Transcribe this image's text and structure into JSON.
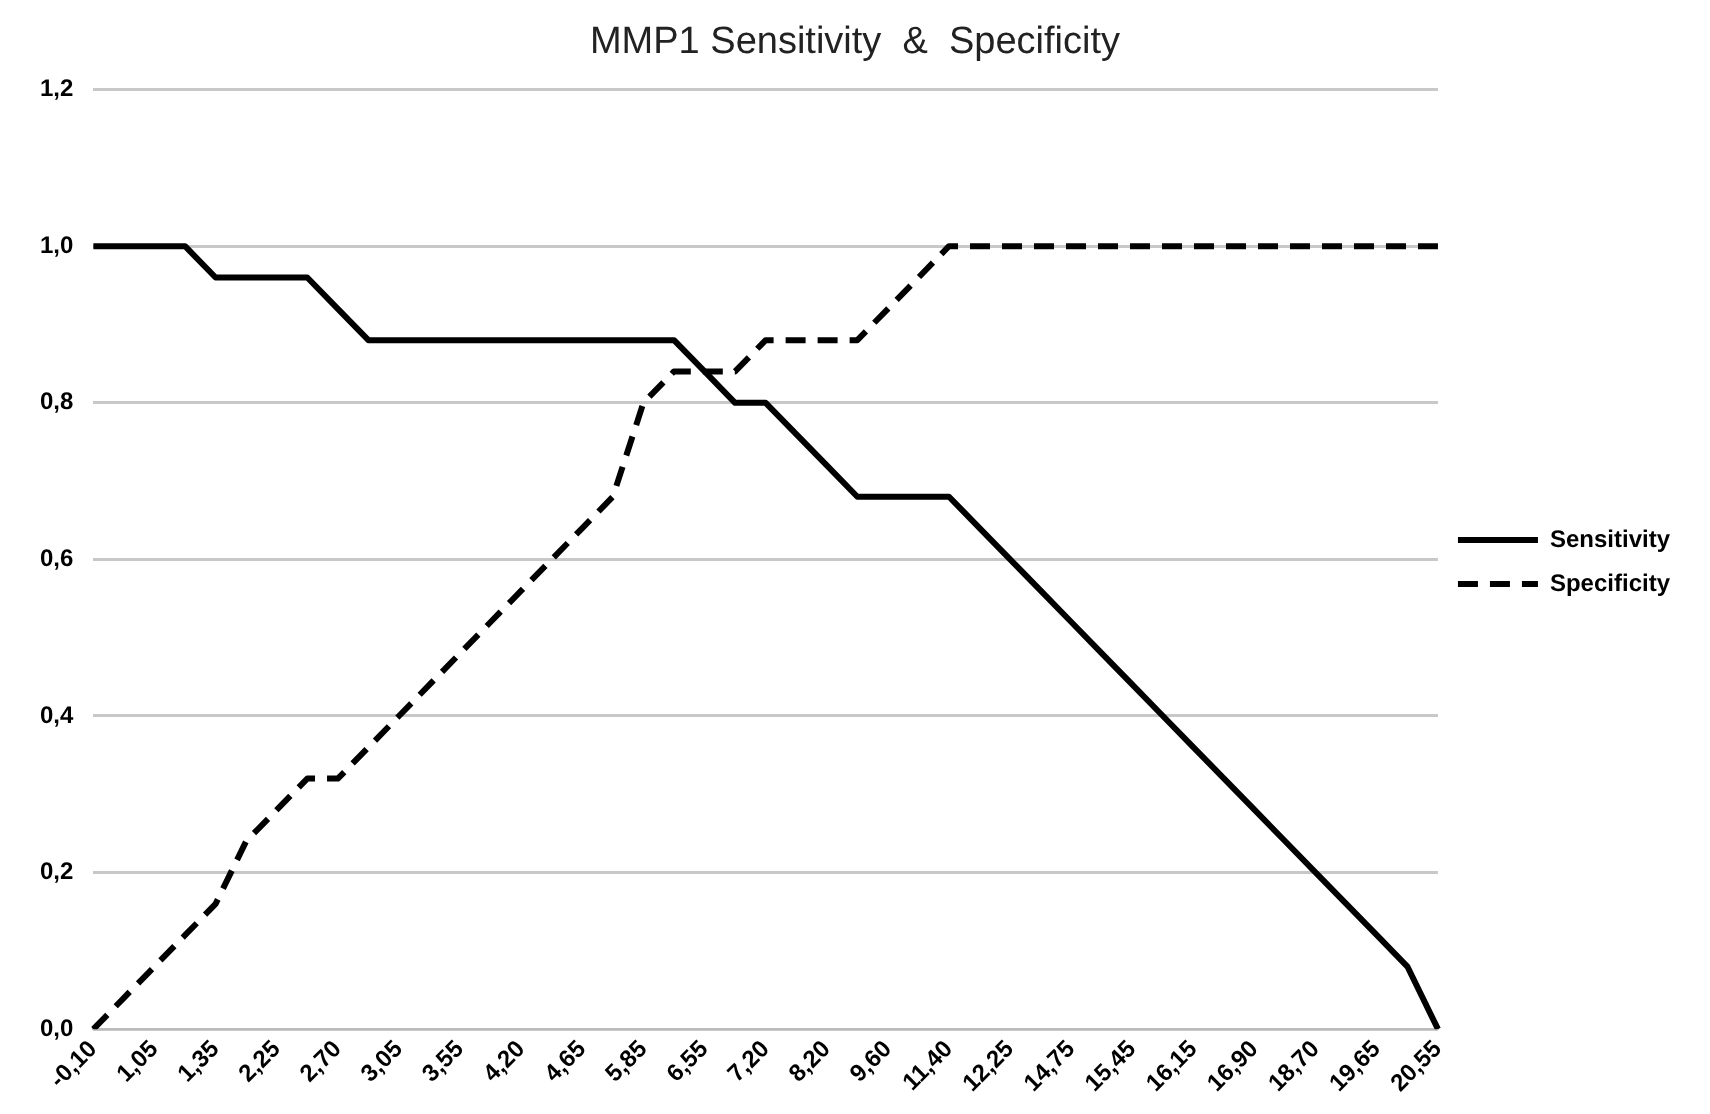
{
  "chart_data": {
    "type": "line",
    "title": "MMP1 Sensitivity  &  Specificity",
    "categories": [
      "-0,10",
      null,
      "1,05",
      null,
      "1,35",
      null,
      "2,25",
      null,
      "2,70",
      null,
      "3,05",
      null,
      "3,55",
      null,
      "4,20",
      null,
      "4,65",
      null,
      "5,85",
      null,
      "6,55",
      null,
      "7,20",
      null,
      "8,20",
      null,
      "9,60",
      null,
      "11,40",
      null,
      "12,25",
      null,
      "14,75",
      null,
      "15,45",
      null,
      "16,15",
      null,
      "16,90",
      null,
      "18,70",
      null,
      "19,65",
      null,
      "20,55"
    ],
    "series": [
      {
        "name": "Sensitivity",
        "color": "#000000",
        "line_style": "solid",
        "values": [
          1.0,
          1.0,
          1.0,
          1.0,
          0.96,
          0.96,
          0.96,
          0.96,
          0.92,
          0.88,
          0.88,
          0.88,
          0.88,
          0.88,
          0.88,
          0.88,
          0.88,
          0.88,
          0.88,
          0.88,
          0.84,
          0.8,
          0.8,
          0.76,
          0.72,
          0.68,
          0.68,
          0.68,
          0.68,
          0.64,
          0.6,
          0.56,
          0.52,
          0.48,
          0.44,
          0.4,
          0.36,
          0.32,
          0.28,
          0.24,
          0.2,
          0.16,
          0.12,
          0.08,
          0.0
        ]
      },
      {
        "name": "Specificity",
        "color": "#000000",
        "line_style": "dashed",
        "values": [
          0.0,
          0.04,
          0.08,
          0.12,
          0.16,
          0.24,
          0.28,
          0.32,
          0.32,
          0.36,
          0.4,
          0.44,
          0.48,
          0.52,
          0.56,
          0.6,
          0.64,
          0.68,
          0.8,
          0.84,
          0.84,
          0.84,
          0.88,
          0.88,
          0.88,
          0.88,
          0.92,
          0.96,
          1.0,
          1.0,
          1.0,
          1.0,
          1.0,
          1.0,
          1.0,
          1.0,
          1.0,
          1.0,
          1.0,
          1.0,
          1.0,
          1.0,
          1.0,
          1.0,
          1.0
        ]
      }
    ],
    "ylim": [
      0,
      1.2
    ],
    "yticks": [
      {
        "value": 0,
        "label": "0,0"
      },
      {
        "value": 0.2,
        "label": "0,2"
      },
      {
        "value": 0.4,
        "label": "0,4"
      },
      {
        "value": 0.6,
        "label": "0,6"
      },
      {
        "value": 0.8,
        "label": "0,8"
      },
      {
        "value": 1.0,
        "label": "1,0"
      },
      {
        "value": 1.2,
        "label": "1,2"
      }
    ],
    "grid": "y",
    "legend": "right",
    "marker": "none"
  }
}
